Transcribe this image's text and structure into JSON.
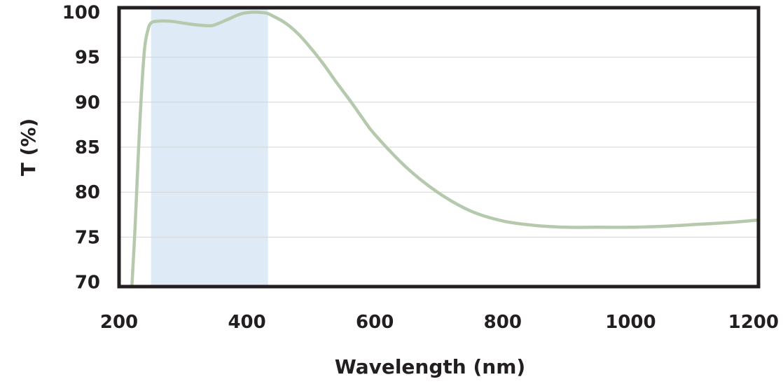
{
  "chart_data": {
    "type": "line",
    "title": "",
    "xlabel": "Wavelength (nm)",
    "ylabel": "T (%)",
    "xlim": [
      200,
      1200
    ],
    "ylim": [
      69.5,
      100.5
    ],
    "xticks": [
      "200",
      "400",
      "600",
      "800",
      "1000",
      "1200"
    ],
    "yticks": [
      "100",
      "95",
      "90",
      "85",
      "80",
      "75",
      "70"
    ],
    "grid": true,
    "legend": "none",
    "shaded_band": {
      "x_start": 250,
      "x_end": 433,
      "color": "#deebf7"
    },
    "series": [
      {
        "color": "#b5c9ad",
        "x": [
          220,
          225,
          230,
          235,
          240,
          245,
          250,
          260,
          280,
          300,
          320,
          340,
          350,
          370,
          390,
          410,
          430,
          440,
          460,
          480,
          500,
          520,
          540,
          560,
          580,
          600,
          650,
          700,
          750,
          800,
          850,
          900,
          950,
          1000,
          1050,
          1100,
          1150,
          1200
        ],
        "y": [
          69.5,
          76,
          84,
          91,
          96,
          98,
          98.8,
          99.0,
          99.0,
          98.8,
          98.6,
          98.5,
          98.6,
          99.2,
          99.8,
          100.0,
          99.9,
          99.6,
          98.8,
          97.6,
          96.0,
          94.2,
          92.2,
          90.3,
          88.3,
          86.4,
          82.7,
          79.9,
          77.9,
          76.8,
          76.3,
          76.1,
          76.1,
          76.1,
          76.2,
          76.4,
          76.6,
          76.9
        ]
      }
    ]
  }
}
